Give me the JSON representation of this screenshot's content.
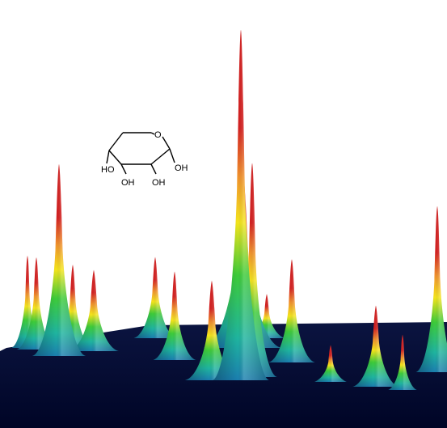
{
  "molecule": {
    "ring_oxygen": "O",
    "substituents": [
      "HO",
      "OH",
      "OH",
      "OH"
    ]
  },
  "colors": {
    "background": "#ffffff",
    "floor_top": "#0b1440",
    "floor_bottom": "#000526",
    "peak_base": "#1b7fb0",
    "peak_low": "#1fb5a0",
    "peak_mid": "#3dcc3a",
    "peak_upper": "#f5e51b",
    "peak_high": "#f2932c",
    "peak_top": "#d62020",
    "bond": "#000000"
  },
  "peaks": [
    {
      "h": 0.25
    },
    {
      "h": 0.25
    },
    {
      "h": 0.52
    },
    {
      "h": 0.23
    },
    {
      "h": 0.22
    },
    {
      "h": 0.22
    },
    {
      "h": 0.24
    },
    {
      "h": 0.27
    },
    {
      "h": 0.5
    },
    {
      "h": 0.95
    },
    {
      "h": 0.58
    },
    {
      "h": 0.28
    },
    {
      "h": 0.1
    },
    {
      "h": 0.22
    },
    {
      "h": 0.15
    },
    {
      "h": 0.45
    },
    {
      "h": 0.12
    }
  ]
}
